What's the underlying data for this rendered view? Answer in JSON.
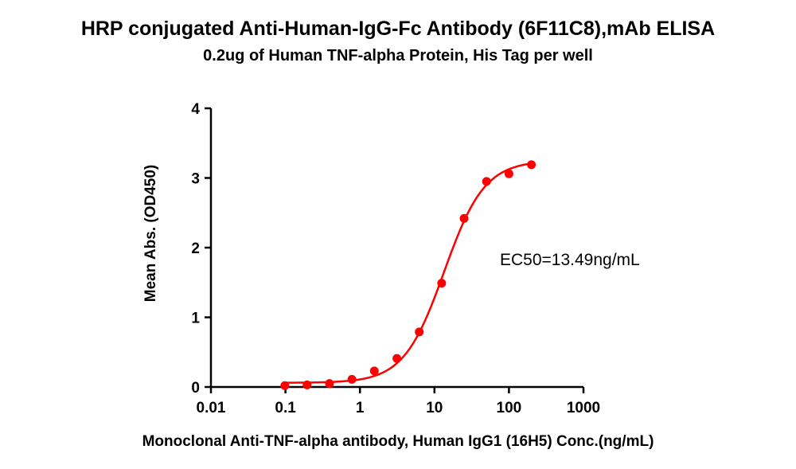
{
  "chart_data": {
    "type": "scatter",
    "title": "HRP conjugated Anti-Human-IgG-Fc Antibody (6F11C8),mAb  ELISA",
    "subtitle": "0.2ug of Human TNF-alpha Protein, His Tag per well",
    "xlabel": "Monoclonal Anti-TNF-alpha antibody, Human IgG1 (16H5) Conc.(ng/mL)",
    "ylabel": "Mean Abs. (OD450)",
    "x_scale": "log",
    "xlim": [
      0.01,
      1000
    ],
    "ylim": [
      0,
      4
    ],
    "x_ticks": [
      "0.01",
      "0.1",
      "1",
      "10",
      "100",
      "1000"
    ],
    "y_ticks": [
      "0",
      "1",
      "2",
      "3",
      "4"
    ],
    "x": [
      0.098,
      0.195,
      0.39,
      0.78,
      1.56,
      3.13,
      6.25,
      12.5,
      25,
      50,
      100,
      200
    ],
    "y": [
      0.02,
      0.03,
      0.05,
      0.11,
      0.23,
      0.41,
      0.79,
      1.49,
      2.42,
      2.95,
      3.06,
      3.19
    ],
    "fit": {
      "bottom": 0.06,
      "top": 3.25,
      "ec50": 13.49,
      "hill": 1.6
    },
    "annotation": "EC50=13.49ng/mL",
    "color": "#ff0000",
    "grid": false,
    "legend": "none"
  }
}
